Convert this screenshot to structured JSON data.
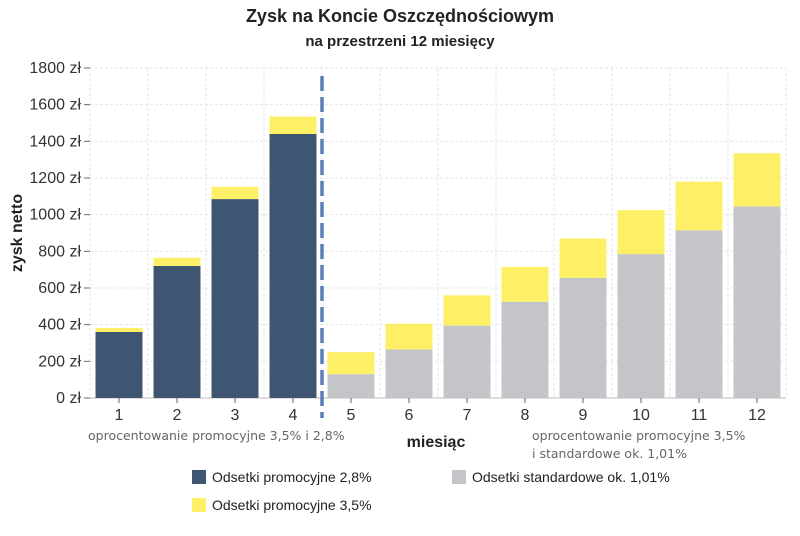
{
  "chart_data": {
    "type": "bar",
    "stacked": true,
    "title": "Zysk na Koncie Oszczędnościowym",
    "subtitle": "na przestrzeni 12 miesięcy",
    "xlabel": "miesiąc",
    "ylabel": "zysk netto",
    "ylim": [
      0,
      1800
    ],
    "ystep": 200,
    "y_tick_suffix": " zł",
    "grid": true,
    "legend_position": "bottom",
    "categories": [
      "1",
      "2",
      "3",
      "4",
      "5",
      "6",
      "7",
      "8",
      "9",
      "10",
      "11",
      "12"
    ],
    "series": [
      {
        "name": "Odsetki promocyjne 2,8%",
        "color": "#3f5672",
        "values": [
          360,
          720,
          1085,
          1440,
          0,
          0,
          0,
          0,
          0,
          0,
          0,
          0
        ]
      },
      {
        "name": "Odsetki standardowe ok. 1,01%",
        "color": "#c4c5c9",
        "values": [
          0,
          0,
          0,
          0,
          130,
          265,
          395,
          525,
          655,
          785,
          915,
          1045
        ]
      },
      {
        "name": "Odsetki promocyjne 3,5%",
        "color": "#fdf066",
        "values": [
          22,
          45,
          67,
          95,
          120,
          140,
          165,
          190,
          215,
          240,
          265,
          290
        ]
      }
    ],
    "divider_after_category": "4",
    "divider_color": "#5a7fb5",
    "annotations": [
      "oprocentowanie promocyjne 3,5% i 2,8%",
      "oprocentowanie promocyjne 3,5%",
      "i standardowe ok. 1,01%"
    ]
  }
}
